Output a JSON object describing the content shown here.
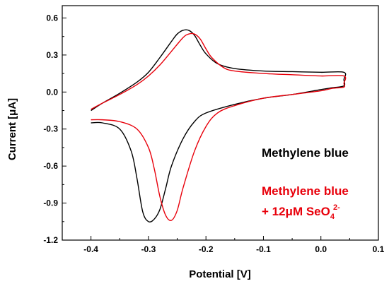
{
  "chart_data": {
    "type": "line",
    "xlabel": "Potential [V]",
    "ylabel": "Current [μA]",
    "xlim": [
      -0.45,
      0.1
    ],
    "ylim": [
      -1.2,
      0.7
    ],
    "xticks": [
      -0.4,
      -0.3,
      -0.2,
      -0.1,
      0.0,
      0.1
    ],
    "xtick_labels": [
      "-0.4",
      "-0.3",
      "-0.2",
      "-0.1",
      "0.0",
      "0.1"
    ],
    "yticks": [
      -1.2,
      -0.9,
      -0.6,
      -0.3,
      0.0,
      0.3,
      0.6
    ],
    "ytick_labels": [
      "-1.2",
      "-0.9",
      "-0.6",
      "-0.3",
      "0.0",
      "0.3",
      "0.6"
    ],
    "grid": false,
    "legend_position": "right",
    "series": [
      {
        "name": "Methylene blue",
        "color": "#000000",
        "x": [
          -0.4,
          -0.38,
          -0.35,
          -0.32,
          -0.3,
          -0.28,
          -0.26,
          -0.25,
          -0.24,
          -0.23,
          -0.22,
          -0.21,
          -0.2,
          -0.18,
          -0.15,
          -0.1,
          -0.05,
          0.0,
          0.04,
          0.04,
          0.04,
          0.02,
          0.0,
          -0.05,
          -0.1,
          -0.15,
          -0.2,
          -0.22,
          -0.24,
          -0.26,
          -0.27,
          -0.28,
          -0.29,
          -0.3,
          -0.31,
          -0.32,
          -0.33,
          -0.35,
          -0.38,
          -0.4
        ],
        "y": [
          -0.15,
          -0.09,
          -0.01,
          0.08,
          0.16,
          0.28,
          0.41,
          0.47,
          0.5,
          0.5,
          0.46,
          0.38,
          0.31,
          0.23,
          0.19,
          0.17,
          0.165,
          0.16,
          0.16,
          0.1,
          0.05,
          0.035,
          0.02,
          -0.02,
          -0.05,
          -0.1,
          -0.17,
          -0.24,
          -0.38,
          -0.6,
          -0.78,
          -0.95,
          -1.03,
          -1.05,
          -0.97,
          -0.7,
          -0.48,
          -0.3,
          -0.25,
          -0.25
        ]
      },
      {
        "name": "Methylene blue + 12μM SeO₄²⁻",
        "color": "#e8000b",
        "x": [
          -0.4,
          -0.38,
          -0.35,
          -0.32,
          -0.3,
          -0.28,
          -0.26,
          -0.24,
          -0.23,
          -0.22,
          -0.21,
          -0.2,
          -0.19,
          -0.17,
          -0.15,
          -0.1,
          -0.05,
          0.0,
          0.04,
          0.04,
          0.04,
          0.02,
          0.0,
          -0.05,
          -0.1,
          -0.15,
          -0.18,
          -0.2,
          -0.22,
          -0.24,
          -0.25,
          -0.26,
          -0.27,
          -0.28,
          -0.29,
          -0.3,
          -0.32,
          -0.35,
          -0.38,
          -0.4
        ],
        "y": [
          -0.14,
          -0.09,
          -0.02,
          0.06,
          0.13,
          0.22,
          0.33,
          0.44,
          0.47,
          0.47,
          0.43,
          0.35,
          0.28,
          0.2,
          0.17,
          0.15,
          0.14,
          0.13,
          0.13,
          0.07,
          0.04,
          0.03,
          0.01,
          -0.02,
          -0.05,
          -0.11,
          -0.17,
          -0.28,
          -0.48,
          -0.78,
          -0.96,
          -1.04,
          -1.0,
          -0.85,
          -0.62,
          -0.45,
          -0.3,
          -0.24,
          -0.225,
          -0.225
        ]
      }
    ],
    "legend": [
      {
        "text": "Methylene blue",
        "color": "#000000"
      },
      {
        "text": "Methylene blue",
        "color": "#e8000b"
      },
      {
        "text": "+ 12μM SeO",
        "sub": "4",
        "sup": "2-",
        "color": "#e8000b"
      }
    ]
  }
}
